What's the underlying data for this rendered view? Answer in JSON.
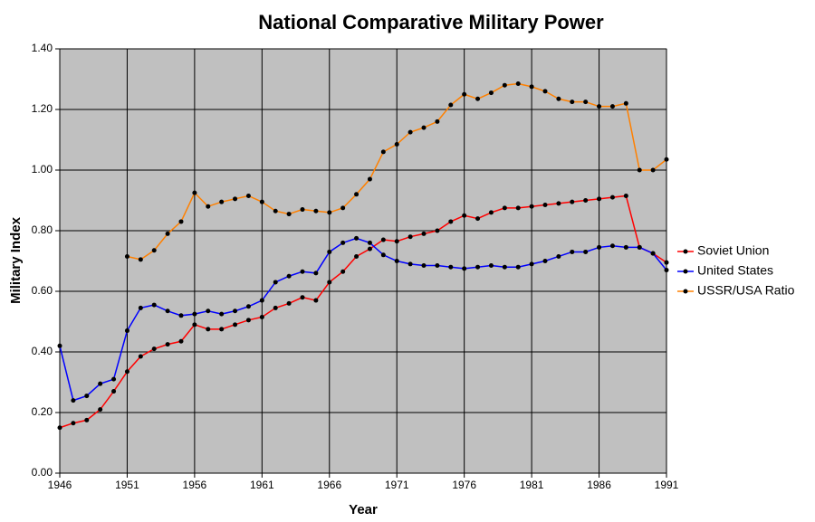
{
  "chart_data": {
    "type": "line",
    "title": "National Comparative Military Power",
    "x_label": "Year",
    "y_label": "Military Index",
    "x": [
      1946,
      1947,
      1948,
      1949,
      1950,
      1951,
      1952,
      1953,
      1954,
      1955,
      1956,
      1957,
      1958,
      1959,
      1960,
      1961,
      1962,
      1963,
      1964,
      1965,
      1966,
      1967,
      1968,
      1969,
      1970,
      1971,
      1972,
      1973,
      1974,
      1975,
      1976,
      1977,
      1978,
      1979,
      1980,
      1981,
      1982,
      1983,
      1984,
      1985,
      1986,
      1987,
      1988,
      1989,
      1990,
      1991
    ],
    "series": [
      {
        "name": "Soviet Union",
        "color": "#ff0000",
        "values": [
          0.15,
          0.165,
          0.175,
          0.21,
          0.27,
          0.335,
          0.385,
          0.41,
          0.425,
          0.435,
          0.49,
          0.475,
          0.475,
          0.49,
          0.505,
          0.515,
          0.545,
          0.56,
          0.58,
          0.57,
          0.63,
          0.665,
          0.715,
          0.74,
          0.77,
          0.765,
          0.78,
          0.79,
          0.8,
          0.83,
          0.85,
          0.84,
          0.86,
          0.875,
          0.875,
          0.88,
          0.885,
          0.89,
          0.895,
          0.9,
          0.905,
          0.91,
          0.915,
          0.745,
          0.725,
          0.695
        ]
      },
      {
        "name": "United States",
        "color": "#0000ff",
        "values": [
          0.42,
          0.24,
          0.255,
          0.295,
          0.31,
          0.47,
          0.545,
          0.555,
          0.535,
          0.52,
          0.525,
          0.535,
          0.525,
          0.535,
          0.55,
          0.57,
          0.63,
          0.65,
          0.665,
          0.66,
          0.73,
          0.76,
          0.775,
          0.76,
          0.72,
          0.7,
          0.69,
          0.685,
          0.685,
          0.68,
          0.675,
          0.68,
          0.685,
          0.68,
          0.68,
          0.69,
          0.7,
          0.715,
          0.73,
          0.73,
          0.745,
          0.75,
          0.745,
          0.745,
          0.725,
          0.67
        ]
      },
      {
        "name": "USSR/USA Ratio",
        "color": "#ff8000",
        "values": [
          null,
          null,
          null,
          null,
          null,
          0.715,
          0.705,
          0.735,
          0.79,
          0.83,
          0.925,
          0.88,
          0.895,
          0.905,
          0.915,
          0.895,
          0.865,
          0.855,
          0.87,
          0.865,
          0.86,
          0.875,
          0.92,
          0.97,
          1.06,
          1.085,
          1.125,
          1.14,
          1.16,
          1.215,
          1.25,
          1.235,
          1.255,
          1.28,
          1.285,
          1.275,
          1.26,
          1.235,
          1.225,
          1.225,
          1.21,
          1.21,
          1.22,
          1.0,
          1.0,
          1.035
        ]
      }
    ],
    "xlim": [
      1946,
      1991
    ],
    "xticks": [
      1946,
      1951,
      1956,
      1961,
      1966,
      1971,
      1976,
      1981,
      1986,
      1991
    ],
    "ylim": [
      0,
      1.4
    ],
    "yticks": [
      {
        "value": 0,
        "label": "0.00"
      },
      {
        "value": 0.2,
        "label": "0.20"
      },
      {
        "value": 0.4,
        "label": "0.40"
      },
      {
        "value": 0.6,
        "label": "0.60"
      },
      {
        "value": 0.8,
        "label": "0.80"
      },
      {
        "value": 1.0,
        "label": "1.00"
      },
      {
        "value": 1.2,
        "label": "1.20"
      },
      {
        "value": 1.4,
        "label": "1.40"
      }
    ],
    "grid": true,
    "legend": "right",
    "marker_color": "#000000",
    "background": "#c0c0c0"
  }
}
